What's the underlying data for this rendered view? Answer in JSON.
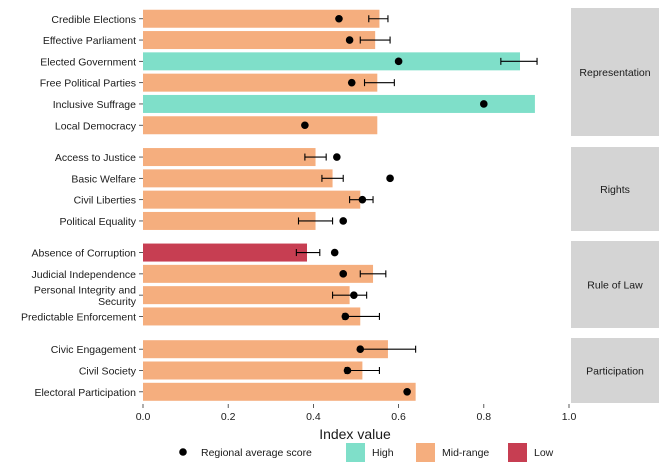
{
  "chart_data": {
    "type": "bar",
    "orientation": "horizontal",
    "xlabel": "Index value",
    "xlim": [
      0,
      1
    ],
    "xticks": [
      "0.0",
      "0.2",
      "0.4",
      "0.6",
      "0.8",
      "1.0"
    ],
    "grid": false,
    "legend_position": "bottom",
    "colors": {
      "High": "#7fdfc9",
      "Mid-range": "#f5ae7e",
      "Low": "#c73e52",
      "dot": "#000000"
    },
    "legend": {
      "dot_label": "Regional average score",
      "categories": [
        "High",
        "Mid-range",
        "Low"
      ]
    },
    "facets": [
      {
        "name": "Representation",
        "rows": [
          {
            "label": "Credible Elections",
            "value": 0.555,
            "category": "Mid-range",
            "avg": 0.46,
            "err": [
              0.53,
              0.575
            ]
          },
          {
            "label": "Effective Parliament",
            "value": 0.545,
            "category": "Mid-range",
            "avg": 0.485,
            "err": [
              0.51,
              0.58
            ]
          },
          {
            "label": "Elected Government",
            "value": 0.885,
            "category": "High",
            "avg": 0.6,
            "err": [
              0.84,
              0.925
            ]
          },
          {
            "label": "Free Political Parties",
            "value": 0.55,
            "category": "Mid-range",
            "avg": 0.49,
            "err": [
              0.52,
              0.59
            ]
          },
          {
            "label": "Inclusive Suffrage",
            "value": 0.92,
            "category": "High",
            "avg": 0.8,
            "err": null
          },
          {
            "label": "Local Democracy",
            "value": 0.55,
            "category": "Mid-range",
            "avg": 0.38,
            "err": null
          }
        ]
      },
      {
        "name": "Rights",
        "rows": [
          {
            "label": "Access to Justice",
            "value": 0.405,
            "category": "Mid-range",
            "avg": 0.455,
            "err": [
              0.38,
              0.43
            ]
          },
          {
            "label": "Basic Welfare",
            "value": 0.445,
            "category": "Mid-range",
            "avg": 0.58,
            "err": [
              0.42,
              0.47
            ]
          },
          {
            "label": "Civil Liberties",
            "value": 0.51,
            "category": "Mid-range",
            "avg": 0.515,
            "err": [
              0.485,
              0.54
            ]
          },
          {
            "label": "Political Equality",
            "value": 0.405,
            "category": "Mid-range",
            "avg": 0.47,
            "err": [
              0.365,
              0.445
            ]
          }
        ]
      },
      {
        "name": "Rule of Law",
        "rows": [
          {
            "label": "Absence of Corruption",
            "value": 0.385,
            "category": "Low",
            "avg": 0.45,
            "err": [
              0.36,
              0.415
            ]
          },
          {
            "label": "Judicial Independence",
            "value": 0.54,
            "category": "Mid-range",
            "avg": 0.47,
            "err": [
              0.51,
              0.57
            ]
          },
          {
            "label": [
              "Personal Integrity and",
              "Security"
            ],
            "value": 0.485,
            "category": "Mid-range",
            "avg": 0.495,
            "err": [
              0.445,
              0.525
            ]
          },
          {
            "label": "Predictable Enforcement",
            "value": 0.51,
            "category": "Mid-range",
            "avg": 0.475,
            "err": [
              0.47,
              0.555
            ]
          }
        ]
      },
      {
        "name": "Participation",
        "rows": [
          {
            "label": "Civic Engagement",
            "value": 0.575,
            "category": "Mid-range",
            "avg": 0.51,
            "err": [
              0.51,
              0.64
            ]
          },
          {
            "label": "Civil Society",
            "value": 0.515,
            "category": "Mid-range",
            "avg": 0.48,
            "err": [
              0.475,
              0.555
            ]
          },
          {
            "label": "Electoral Participation",
            "value": 0.64,
            "category": "Mid-range",
            "avg": 0.62,
            "err": null
          }
        ]
      }
    ]
  }
}
